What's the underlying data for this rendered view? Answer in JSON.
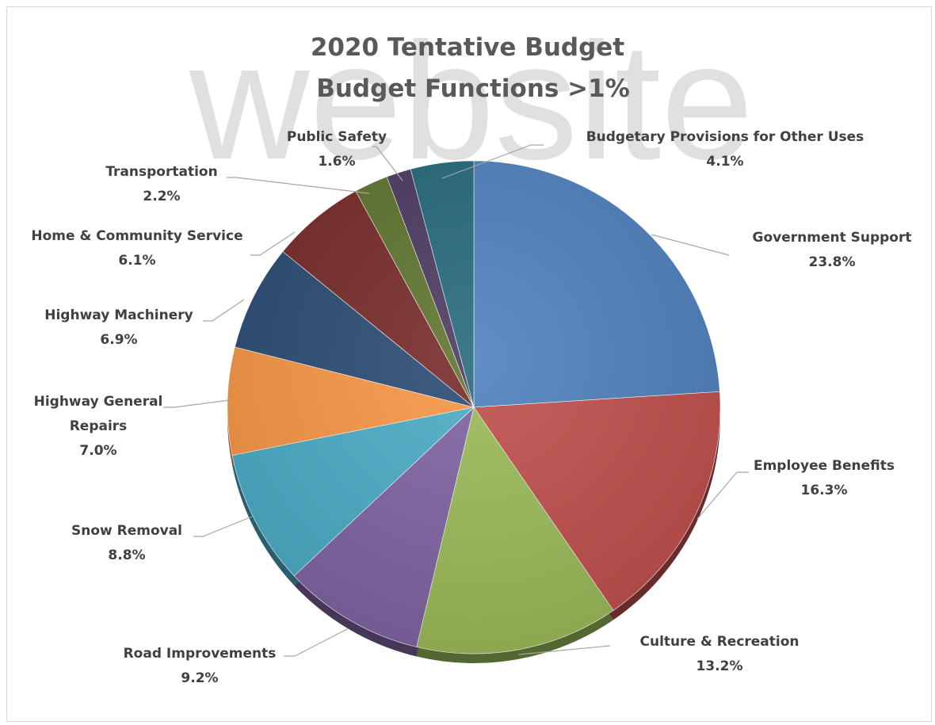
{
  "watermark": "website",
  "chart_data": {
    "type": "pie",
    "title": "2020 Tentative Budget\nBudget Functions >1%",
    "start_angle_note": "",
    "slices": [
      {
        "label": "Government Support",
        "value": 23.8,
        "value_label": "23.8%",
        "color": "#4f81bd"
      },
      {
        "label": "Employee Benefits",
        "value": 16.3,
        "value_label": "16.3%",
        "color": "#c0504d"
      },
      {
        "label": "Culture & Recreation",
        "value": 13.2,
        "value_label": "13.2%",
        "color": "#9bbb59"
      },
      {
        "label": "Road Improvements",
        "value": 9.2,
        "value_label": "9.2%",
        "color": "#8064a2"
      },
      {
        "label": "Snow Removal",
        "value": 8.8,
        "value_label": "8.8%",
        "color": "#4bacc6"
      },
      {
        "label": "Highway General Repairs",
        "value": 7.0,
        "value_label": "7.0%",
        "color": "#f79646"
      },
      {
        "label": "Highway Machinery",
        "value": 6.9,
        "value_label": "6.9%",
        "color": "#2c4d75"
      },
      {
        "label": "Home & Community Service",
        "value": 6.1,
        "value_label": "6.1%",
        "color": "#772c2a"
      },
      {
        "label": "Transportation",
        "value": 2.2,
        "value_label": "2.2%",
        "color": "#5f7530"
      },
      {
        "label": "Public Safety",
        "value": 1.6,
        "value_label": "1.6%",
        "color": "#4d3b62"
      },
      {
        "label": "Budgetary Provisions for Other Uses",
        "value": 4.1,
        "value_label": "4.1%",
        "color": "#276a7c"
      }
    ],
    "legend": "none"
  }
}
